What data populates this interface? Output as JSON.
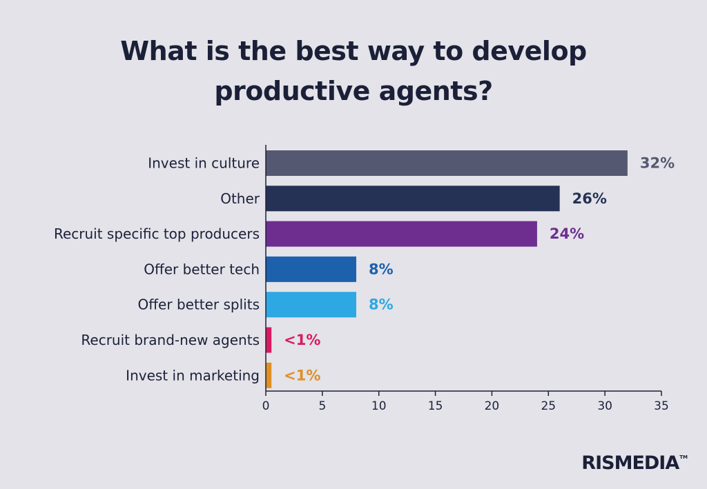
{
  "chart_data": {
    "type": "bar",
    "orientation": "horizontal",
    "title_lines": [
      "What is the best way to develop",
      "productive agents?"
    ],
    "categories": [
      "Invest in culture",
      "Other",
      "Recruit specific top producers",
      "Offer better tech",
      "Offer better splits",
      "Recruit brand-new agents",
      "Invest in marketing"
    ],
    "values": [
      32,
      26,
      24,
      8,
      8,
      0.5,
      0.5
    ],
    "value_labels": [
      "32%",
      "26%",
      "24%",
      "8%",
      "8%",
      "<1%",
      "<1%"
    ],
    "colors": [
      "#545870",
      "#263255",
      "#6e2e90",
      "#1d61ad",
      "#2da8e2",
      "#d81b60",
      "#e08f24"
    ],
    "xlim": [
      0,
      35
    ],
    "xticks": [
      0,
      5,
      10,
      15,
      20,
      25,
      30,
      35
    ],
    "grid": false,
    "legend": "none"
  },
  "branding": {
    "logo_text": "RISMEDIA",
    "logo_mark": "TM"
  }
}
